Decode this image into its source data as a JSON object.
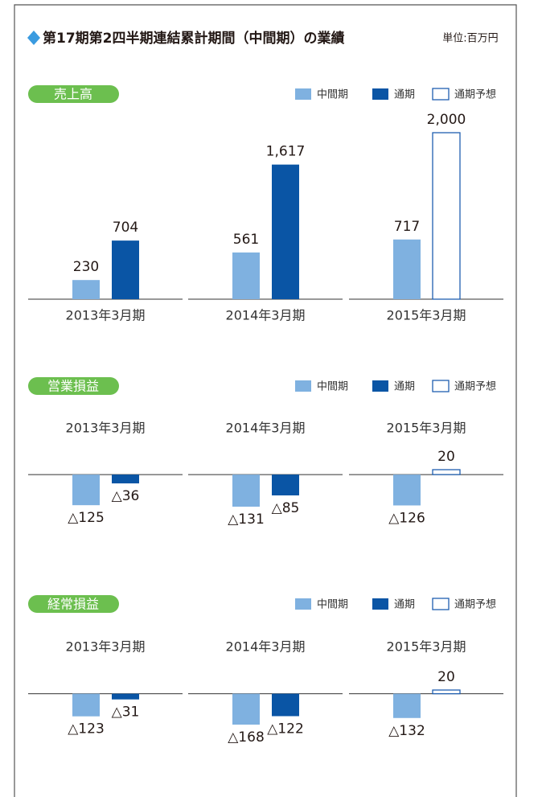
{
  "title": "第17期第2四半期連結累計期間（中間期）の業績",
  "unit": "単位:百万円",
  "chart_data": [
    {
      "type": "bar",
      "title": "売上高",
      "categories": [
        "2013年3月期",
        "2014年3月期",
        "2015年3月期"
      ],
      "ylim": [
        0,
        2000
      ],
      "series": [
        {
          "name": "中間期",
          "color": "#7fb1e0",
          "values": [
            230,
            561,
            717
          ],
          "value_labels": [
            "230",
            "561",
            "717"
          ]
        },
        {
          "name": "通期",
          "color": "#0a55a5",
          "values": [
            704,
            1617,
            null
          ],
          "value_labels": [
            "704",
            "1,617",
            null
          ]
        },
        {
          "name": "通期予想",
          "color": "#1f5fb0",
          "outline": true,
          "values": [
            null,
            null,
            2000
          ],
          "value_labels": [
            null,
            null,
            "2,000"
          ]
        }
      ]
    },
    {
      "type": "bar",
      "title": "営業損益",
      "categories": [
        "2013年3月期",
        "2014年3月期",
        "2015年3月期"
      ],
      "ylim": [
        -131,
        20
      ],
      "series": [
        {
          "name": "中間期",
          "color": "#7fb1e0",
          "values": [
            -125,
            -131,
            -126
          ],
          "value_labels": [
            "△125",
            "△131",
            "△126"
          ]
        },
        {
          "name": "通期",
          "color": "#0a55a5",
          "values": [
            -36,
            -85,
            null
          ],
          "value_labels": [
            "△36",
            "△85",
            null
          ]
        },
        {
          "name": "通期予想",
          "color": "#1f5fb0",
          "outline": true,
          "values": [
            null,
            null,
            20
          ],
          "value_labels": [
            null,
            null,
            "20"
          ]
        }
      ]
    },
    {
      "type": "bar",
      "title": "経常損益",
      "categories": [
        "2013年3月期",
        "2014年3月期",
        "2015年3月期"
      ],
      "ylim": [
        -168,
        20
      ],
      "series": [
        {
          "name": "中間期",
          "color": "#7fb1e0",
          "values": [
            -123,
            -168,
            -132
          ],
          "value_labels": [
            "△123",
            "△168",
            "△132"
          ]
        },
        {
          "name": "通期",
          "color": "#0a55a5",
          "values": [
            -31,
            -122,
            null
          ],
          "value_labels": [
            "△31",
            "△122",
            null
          ]
        },
        {
          "name": "通期予想",
          "color": "#1f5fb0",
          "outline": true,
          "values": [
            null,
            null,
            20
          ],
          "value_labels": [
            null,
            null,
            "20"
          ]
        }
      ]
    }
  ]
}
